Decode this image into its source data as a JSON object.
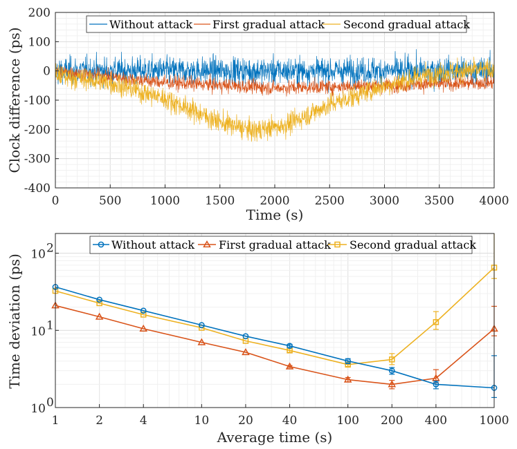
{
  "chart_data": [
    {
      "type": "line",
      "title": "",
      "xlabel": "Time (s)",
      "ylabel": "Clock difference (ps)",
      "xlim": [
        0,
        4000
      ],
      "ylim": [
        -400,
        200
      ],
      "xticks": [
        "0",
        "500",
        "1000",
        "1500",
        "2000",
        "2500",
        "3000",
        "3500",
        "4000"
      ],
      "yticks": [
        "200",
        "100",
        "0",
        "-100",
        "-200",
        "-300",
        "-400"
      ],
      "grid": true,
      "legend_position": "top",
      "series": [
        {
          "name": "Without attack",
          "color": "#0072BD",
          "mean_profile": {
            "x": [
              0,
              4000
            ],
            "y": [
              0,
              0
            ]
          },
          "noise_std_ps": 33
        },
        {
          "name": "First gradual attack",
          "color": "#D95319",
          "mean_profile": {
            "x": [
              0,
              1000,
              2000,
              3000,
              4000
            ],
            "y": [
              0,
              -40,
              -58,
              -50,
              -40
            ]
          },
          "noise_std_ps": 17
        },
        {
          "name": "Second gradual attack",
          "color": "#EDB120",
          "mean_profile": {
            "x": [
              0,
              500,
              1000,
              1500,
              1800,
              2100,
              2500,
              3000,
              3500,
              4000
            ],
            "y": [
              -15,
              -40,
              -95,
              -175,
              -205,
              -185,
              -115,
              -50,
              -5,
              5
            ]
          },
          "noise_std_ps": 26
        }
      ]
    },
    {
      "type": "line",
      "title": "",
      "xlabel": "Average time (s)",
      "ylabel": "Time deviation (ps)",
      "xscale": "log",
      "yscale": "log",
      "xlim": [
        1,
        1000
      ],
      "ylim": [
        1,
        180
      ],
      "xticks": [
        "1",
        "2",
        "4",
        "10",
        "20",
        "40",
        "100",
        "200",
        "400",
        "1000"
      ],
      "ytick_mantissa": "10",
      "ytick_exponents": [
        "0",
        "1",
        "2"
      ],
      "grid": true,
      "legend_position": "top",
      "x": [
        1,
        2,
        4,
        10,
        20,
        40,
        100,
        200,
        400,
        1000
      ],
      "series": [
        {
          "name": "Without attack",
          "color": "#0072BD",
          "marker": "circle",
          "values": [
            36.5,
            25,
            18,
            11.7,
            8.4,
            6.3,
            4.0,
            3.0,
            2.0,
            1.8
          ],
          "err_low": [
            null,
            null,
            null,
            null,
            null,
            6.0,
            3.7,
            2.7,
            1.75,
            1.35
          ],
          "err_high": [
            null,
            null,
            null,
            null,
            null,
            6.6,
            4.3,
            3.3,
            2.2,
            4.7
          ]
        },
        {
          "name": "First gradual attack",
          "color": "#D95319",
          "marker": "triangle",
          "values": [
            21,
            15,
            10.5,
            7.0,
            5.2,
            3.4,
            2.3,
            2.0,
            2.4,
            10.5
          ],
          "err_low": [
            null,
            null,
            null,
            null,
            null,
            3.3,
            2.15,
            1.75,
            2.1,
            8.5
          ],
          "err_high": [
            null,
            null,
            null,
            null,
            null,
            3.5,
            2.45,
            2.25,
            3.1,
            20.5
          ]
        },
        {
          "name": "Second gradual attack",
          "color": "#EDB120",
          "marker": "square",
          "values": [
            32.5,
            22.5,
            16,
            10.8,
            7.3,
            5.5,
            3.6,
            4.2,
            12.8,
            65
          ],
          "err_low": [
            null,
            null,
            null,
            null,
            null,
            5.2,
            3.4,
            3.6,
            10.3,
            47
          ],
          "err_high": [
            null,
            null,
            null,
            null,
            null,
            5.8,
            3.8,
            5.0,
            17.5,
            180
          ]
        }
      ]
    }
  ]
}
